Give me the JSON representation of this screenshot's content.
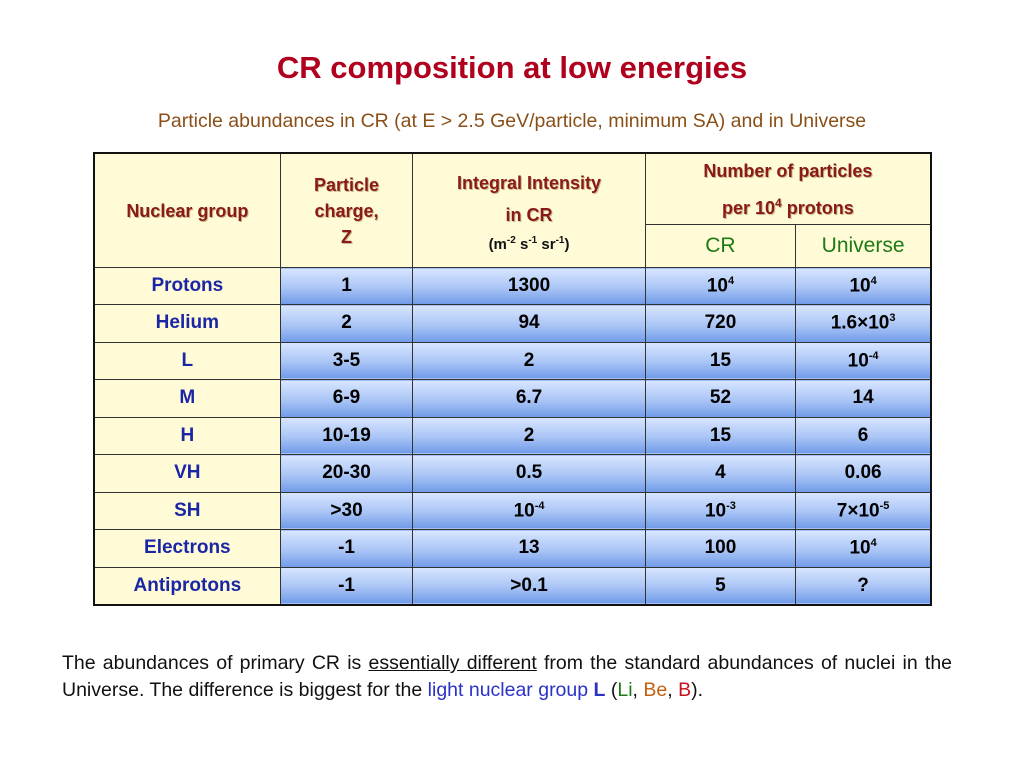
{
  "title": "CR composition at low energies",
  "subtitle": "Particle abundances in CR (at E > 2.5 GeV/particle, minimum SA) and in Universe",
  "table": {
    "headers": {
      "group": "Nuclear group",
      "charge_l1": "Particle",
      "charge_l2": "charge,",
      "charge_l3": "Z",
      "intensity_l1": "Integral Intensity",
      "intensity_l2": "in CR",
      "intensity_units": "(m-2 s-1 sr-1)",
      "number_l1": "Number of particles",
      "number_l2": "per 104 protons",
      "cr": "CR",
      "universe": "Universe"
    },
    "rows": [
      {
        "group": "Protons",
        "z": "1",
        "intensity": "1300",
        "cr": "10^4",
        "universe": "10^4"
      },
      {
        "group": "Helium",
        "z": "2",
        "intensity": "94",
        "cr": "720",
        "universe": "1.6×10^3"
      },
      {
        "group": "L",
        "z": "3-5",
        "intensity": "2",
        "cr": "15",
        "universe": "10^-4"
      },
      {
        "group": "M",
        "z": "6-9",
        "intensity": "6.7",
        "cr": "52",
        "universe": "14"
      },
      {
        "group": "H",
        "z": "10-19",
        "intensity": "2",
        "cr": "15",
        "universe": "6"
      },
      {
        "group": "VH",
        "z": "20-30",
        "intensity": "0.5",
        "cr": "4",
        "universe": "0.06"
      },
      {
        "group": "SH",
        "z": ">30",
        "intensity": "10^-4",
        "cr": "10^-3",
        "universe": "7×10^-5"
      },
      {
        "group": "Electrons",
        "z": "-1",
        "intensity": "13",
        "cr": "100",
        "universe": "10^4"
      },
      {
        "group": "Antiprotons",
        "z": "-1",
        "intensity": ">0.1",
        "cr": "5",
        "universe": "?"
      }
    ]
  },
  "footer": {
    "part1": "The abundances of primary CR is ",
    "underlined": "essentially different",
    "part2": " from the standard abundances of nuclei in the Universe. The difference is biggest for the ",
    "light_group": "light nuclear group",
    "space": " ",
    "L": "L",
    "open_paren": "  (",
    "Li": "Li",
    "comma1": ", ",
    "Be": "Be",
    "comma2": ", ",
    "B": "B",
    "close": ")."
  },
  "colors": {
    "title": "#b0001e",
    "subtitle": "#8a4f17",
    "header_bg": "#fffbd6",
    "group_text": "#1a26a6",
    "sub_header_text": "#1e7a14",
    "value_gradient_bottom": "#6f9be8"
  }
}
